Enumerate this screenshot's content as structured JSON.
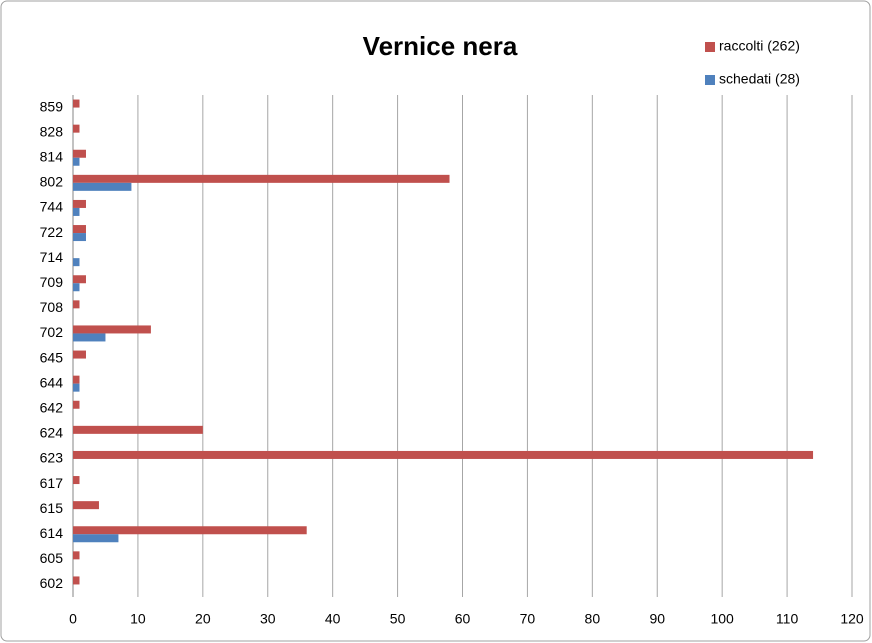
{
  "chart_data": {
    "type": "barh",
    "title": "Vernice nera",
    "categories": [
      "859",
      "828",
      "814",
      "802",
      "744",
      "722",
      "714",
      "709",
      "708",
      "702",
      "645",
      "644",
      "642",
      "624",
      "623",
      "617",
      "615",
      "614",
      "605",
      "602"
    ],
    "series": [
      {
        "name": "raccolti (262)",
        "color": "#c0504d",
        "values": [
          1,
          1,
          2,
          58,
          2,
          2,
          0,
          2,
          1,
          12,
          2,
          1,
          1,
          20,
          114,
          1,
          4,
          36,
          1,
          1
        ]
      },
      {
        "name": "schedati (28)",
        "color": "#4f81bd",
        "values": [
          0,
          0,
          1,
          9,
          1,
          2,
          1,
          1,
          0,
          5,
          0,
          1,
          0,
          0,
          0,
          0,
          0,
          7,
          0,
          0
        ]
      }
    ],
    "xlim": [
      0,
      120
    ],
    "xticks": [
      0,
      10,
      20,
      30,
      40,
      50,
      60,
      70,
      80,
      90,
      100,
      110,
      120
    ],
    "grid": true,
    "legend": "top-right"
  }
}
